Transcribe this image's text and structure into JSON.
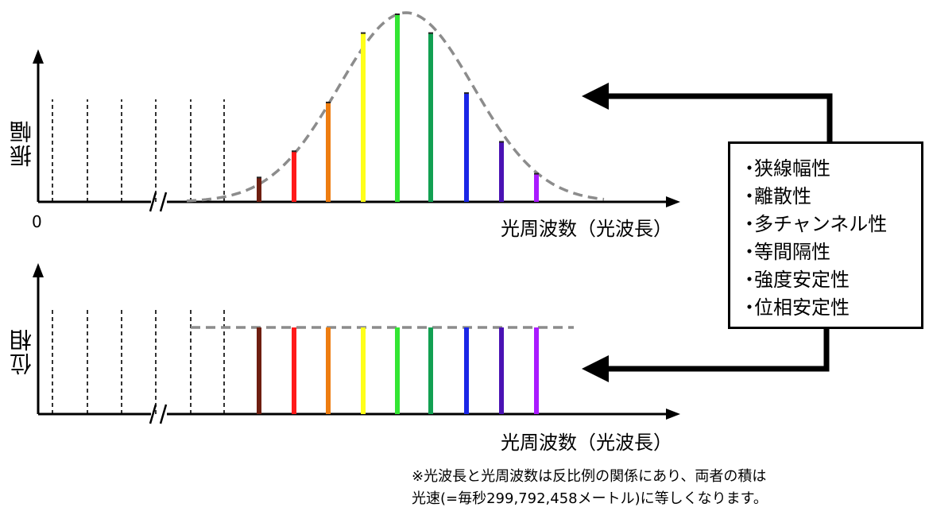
{
  "top_chart": {
    "y_label": "振幅",
    "x_label": "光周波数（光波長）",
    "origin_label": "0",
    "comb_colors": [
      "#6e1e10",
      "#ff1a1a",
      "#ee7d10",
      "#ffff1a",
      "#33e633",
      "#12a052",
      "#1a26e6",
      "#4a12b4",
      "#aa1aff"
    ],
    "comb_amplitudes": [
      0.13,
      0.27,
      0.53,
      0.9,
      1.0,
      0.9,
      0.58,
      0.32,
      0.15
    ],
    "envelope": "gaussian"
  },
  "bottom_chart": {
    "y_label": "位相",
    "x_label": "光周波数（光波長）",
    "comb_colors": [
      "#6e1e10",
      "#ff1a1a",
      "#ee7d10",
      "#ffff1a",
      "#33e633",
      "#12a052",
      "#1a26e6",
      "#4a12b4",
      "#aa1aff"
    ],
    "phase": "constant"
  },
  "properties": {
    "items": [
      "狭線幅性",
      "離散性",
      "多チャンネル性",
      "等間隔性",
      "強度安定性",
      "位相安定性"
    ]
  },
  "footnote": {
    "line1": "※光波長と光周波数は反比例の関係にあり、両者の積は",
    "line2": "光速(=毎秒299,792,458メートル)に等しくなります。"
  }
}
